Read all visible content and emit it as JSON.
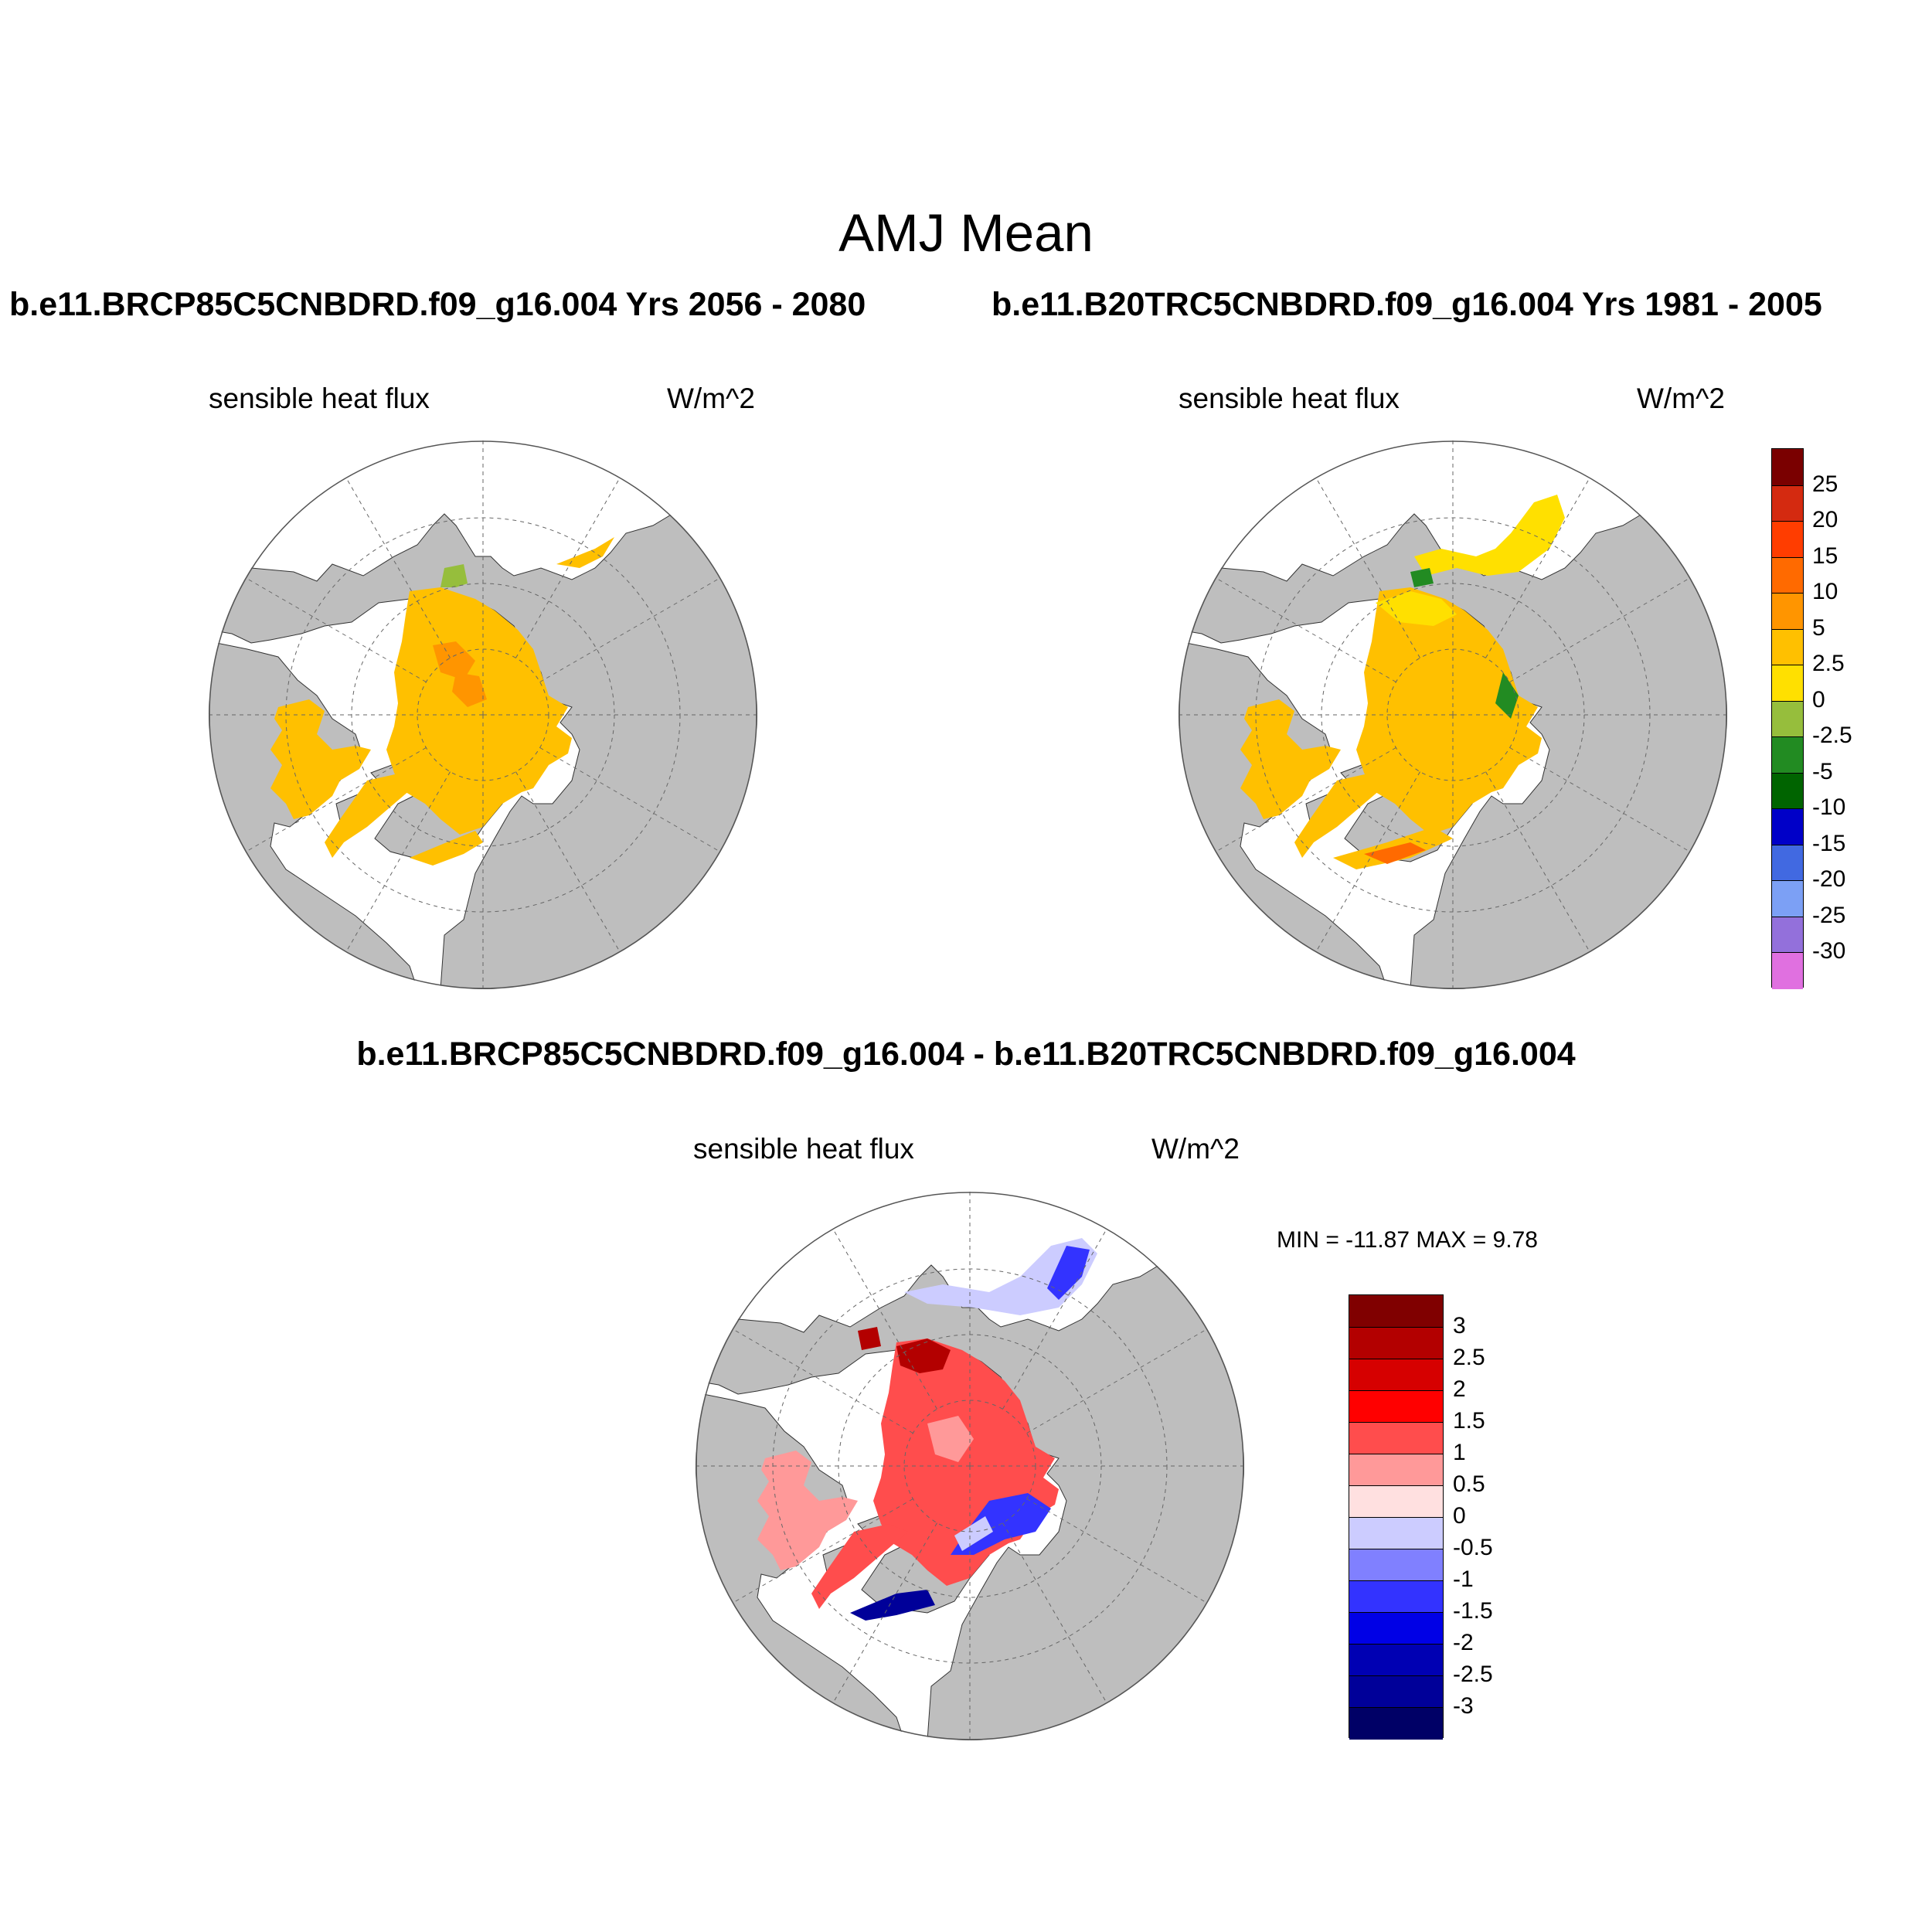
{
  "title": "AMJ Mean",
  "case_a_title": "b.e11.BRCP85C5CNBDRD.f09_g16.004  Yrs 2056 - 2080",
  "case_b_title": "b.e11.B20TRC5CNBDRD.f09_g16.004  Yrs 1981 - 2005",
  "diff_title": "b.e11.BRCP85C5CNBDRD.f09_g16.004 - b.e11.B20TRC5CNBDRD.f09_g16.004",
  "panels": [
    {
      "id": "case-a",
      "variable": "sensible heat flux",
      "units": "W/m^2"
    },
    {
      "id": "case-b",
      "variable": "sensible heat flux",
      "units": "W/m^2"
    },
    {
      "id": "diff",
      "variable": "sensible heat flux",
      "units": "W/m^2"
    }
  ],
  "diff_minmax": "MIN = -11.87 MAX =   9.78",
  "colorbar_main": {
    "labels": [
      "25",
      "20",
      "15",
      "10",
      "5",
      "2.5",
      "0",
      "-2.5",
      "-5",
      "-10",
      "-15",
      "-20",
      "-25",
      "-30"
    ],
    "colors": [
      "#7a0000",
      "#d42a10",
      "#ff3d00",
      "#ff6a00",
      "#ff9500",
      "#ffc000",
      "#ffe000",
      "#96be3c",
      "#228b22",
      "#006400",
      "#0000c8",
      "#4169e1",
      "#7ca0f5",
      "#9370db",
      "#e070e0"
    ]
  },
  "colorbar_diff": {
    "labels": [
      "3",
      "2.5",
      "2",
      "1.5",
      "1",
      "0.5",
      "0",
      "-0.5",
      "-1",
      "-1.5",
      "-2",
      "-2.5",
      "-3"
    ],
    "colors": [
      "#800000",
      "#b30000",
      "#d60000",
      "#ff0000",
      "#ff4d4d",
      "#ff9999",
      "#ffe0e0",
      "#ccccff",
      "#8080ff",
      "#3333ff",
      "#0000e6",
      "#0000b3",
      "#000099",
      "#000066"
    ]
  },
  "map_colors": {
    "land": "#bebebe",
    "coast": "#333333",
    "grid": "#666666",
    "case_a_fill": "#ffc000",
    "case_a_patch": "#ff9500",
    "case_a_green": "#96be3c",
    "case_b_fill": "#ffc000",
    "case_b_yellow": "#ffe000",
    "case_b_green": "#228b22",
    "case_b_orange": "#ff6a00",
    "diff_red": "#ff4d4d",
    "diff_darkred": "#b30000",
    "diff_pink": "#ff9999",
    "diff_blue": "#3333ff",
    "diff_lightblue": "#ccccff",
    "diff_navy": "#000099"
  }
}
